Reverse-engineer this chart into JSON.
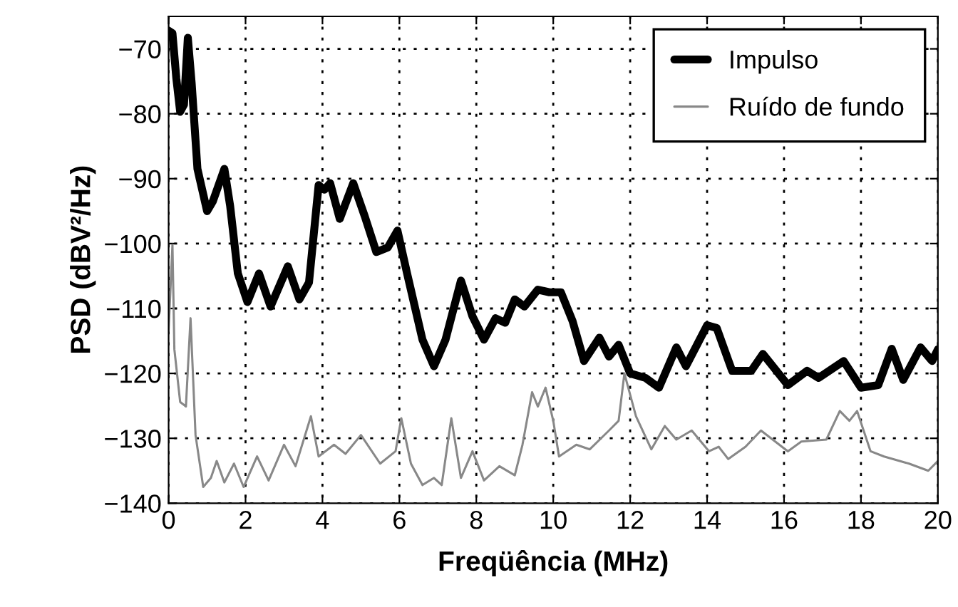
{
  "chart_data": {
    "type": "line",
    "xlabel": "Freqüência (MHz)",
    "ylabel": "PSD (dBV²/Hz)",
    "xlim": [
      0,
      20
    ],
    "xticks": [
      0,
      2,
      4,
      6,
      8,
      10,
      12,
      14,
      16,
      18,
      20
    ],
    "ylim": [
      -140,
      -65
    ],
    "yticks": [
      -140,
      -130,
      -120,
      -110,
      -100,
      -90,
      -80,
      -70
    ],
    "grid": true,
    "legend": "top right",
    "line_style": "solid",
    "marker": "none",
    "series": [
      {
        "name": "Impulso",
        "color": "#000000",
        "x": [
          0,
          0.1,
          0.2,
          0.3,
          0.4,
          0.5,
          0.6,
          0.75,
          1,
          1.15,
          1.45,
          1.6,
          1.8,
          2.05,
          2.35,
          2.65,
          3.1,
          3.4,
          3.65,
          3.9,
          4.05,
          4.2,
          4.45,
          4.8,
          5.1,
          5.4,
          5.7,
          5.95,
          6.2,
          6.6,
          6.9,
          7.2,
          7.6,
          7.9,
          8.2,
          8.5,
          8.75,
          9,
          9.25,
          9.6,
          9.9,
          10.2,
          10.5,
          10.8,
          11.2,
          11.45,
          11.7,
          12,
          12.4,
          12.75,
          13.2,
          13.45,
          14,
          14.25,
          14.65,
          15.15,
          15.45,
          16.1,
          16.6,
          16.9,
          17.55,
          18,
          18.45,
          18.8,
          19.1,
          19.55,
          19.85,
          20
        ],
        "values": [
          -67.2,
          -67.6,
          -74.5,
          -79.7,
          -78.6,
          -68.3,
          -75.3,
          -88.5,
          -95,
          -93.5,
          -88.5,
          -94.2,
          -104.6,
          -109,
          -104.6,
          -109.7,
          -103.5,
          -108.6,
          -106,
          -91,
          -91.7,
          -90.7,
          -96.2,
          -90.7,
          -95.8,
          -101.3,
          -100.6,
          -98,
          -104.6,
          -114.8,
          -118.9,
          -114.8,
          -105.7,
          -111.2,
          -114.8,
          -111.5,
          -112.2,
          -108.6,
          -109.7,
          -107.1,
          -107.5,
          -107.5,
          -111.9,
          -118.1,
          -114.5,
          -117.4,
          -115.6,
          -120,
          -120.7,
          -122.2,
          -116,
          -118.9,
          -112.6,
          -113,
          -119.6,
          -119.6,
          -117,
          -121.8,
          -119.6,
          -120.7,
          -118.1,
          -122.2,
          -121.8,
          -116.2,
          -121,
          -116,
          -118.1,
          -116.3
        ]
      },
      {
        "name": "Ruído de fundo",
        "color": "#888888",
        "x": [
          0,
          0.1,
          0.15,
          0.3,
          0.45,
          0.57,
          0.7,
          0.9,
          1.1,
          1.25,
          1.45,
          1.7,
          1.95,
          2.3,
          2.6,
          3,
          3.3,
          3.7,
          3.9,
          4.3,
          4.6,
          5,
          5.5,
          5.9,
          6.05,
          6.3,
          6.6,
          6.9,
          7.1,
          7.35,
          7.6,
          7.9,
          8.2,
          8.6,
          9,
          9.2,
          9.45,
          9.6,
          9.8,
          10,
          10.15,
          10.6,
          10.95,
          11.45,
          11.7,
          11.85,
          12.15,
          12.55,
          12.9,
          13.2,
          13.6,
          14.05,
          14.3,
          14.55,
          15,
          15.4,
          16.1,
          16.45,
          17.1,
          17.45,
          17.7,
          17.9,
          18.25,
          18.6,
          19.25,
          19.75,
          20
        ],
        "values": [
          -113.4,
          -100.2,
          -116.3,
          -124.4,
          -125.1,
          -111.5,
          -129.5,
          -137.5,
          -136.1,
          -133.5,
          -136.8,
          -133.9,
          -137.5,
          -132.8,
          -136.5,
          -131,
          -134.3,
          -126.6,
          -132.8,
          -131,
          -132.4,
          -129.5,
          -133.9,
          -132,
          -126.9,
          -133.9,
          -137.2,
          -136.1,
          -137.2,
          -126.9,
          -136.1,
          -132,
          -136.5,
          -134.3,
          -135.7,
          -131,
          -122.9,
          -125.1,
          -122.2,
          -127.3,
          -132.8,
          -131,
          -131.7,
          -128.8,
          -127.3,
          -120,
          -126.6,
          -131.7,
          -128.1,
          -130.2,
          -128.8,
          -132,
          -131.3,
          -133.2,
          -131.3,
          -128.8,
          -132,
          -130.5,
          -130.2,
          -125.8,
          -127.3,
          -125.8,
          -132,
          -132.8,
          -133.9,
          -135,
          -133.5
        ]
      }
    ]
  }
}
